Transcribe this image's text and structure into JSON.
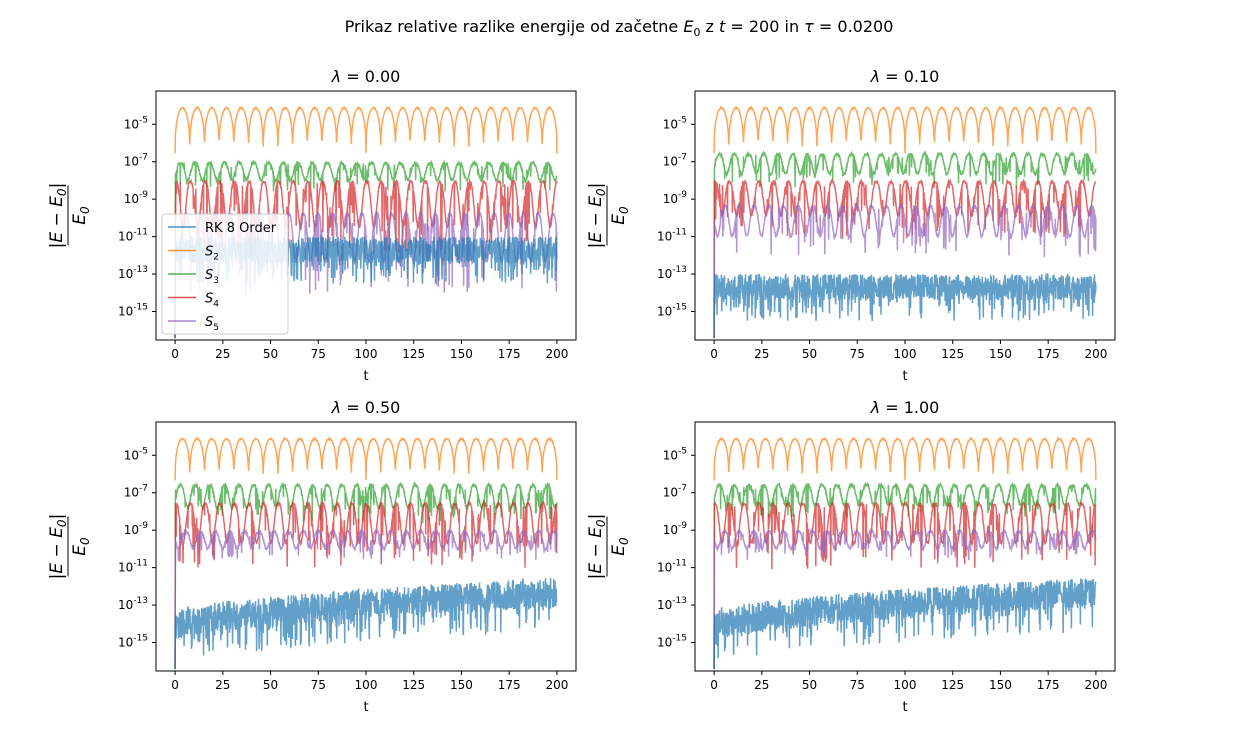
{
  "suptitle": {
    "prefix": "Prikaz relative razlike energije od začetne ",
    "e0": "E",
    "e0_sub": "0",
    "mid": " z ",
    "t_sym": "t",
    "t_val": " = 200 in ",
    "tau_sym": "τ",
    "tau_val": " = 0.0200"
  },
  "axis": {
    "xlabel": "t",
    "ylabel_num": "|E − E",
    "ylabel_num_sub": "0",
    "ylabel_num_end": "|",
    "ylabel_den": "E",
    "ylabel_den_sub": "0",
    "xticks": [
      "0",
      "25",
      "50",
      "75",
      "100",
      "125",
      "150",
      "175",
      "200"
    ],
    "yticks": [
      {
        "base": "10",
        "exp": "-15"
      },
      {
        "base": "10",
        "exp": "-13"
      },
      {
        "base": "10",
        "exp": "-11"
      },
      {
        "base": "10",
        "exp": "-9"
      },
      {
        "base": "10",
        "exp": "-7"
      },
      {
        "base": "10",
        "exp": "-5"
      }
    ]
  },
  "legend": [
    {
      "label": "RK 8 Order",
      "sub": "",
      "color": "#1f77b4"
    },
    {
      "label": "S",
      "sub": "2",
      "color": "#ff7f0e"
    },
    {
      "label": "S",
      "sub": "3",
      "color": "#2ca02c"
    },
    {
      "label": "S",
      "sub": "4",
      "color": "#d62728"
    },
    {
      "label": "S",
      "sub": "5",
      "color": "#9467bd"
    }
  ],
  "chart_data": [
    {
      "type": "line",
      "title": "λ = 0.00",
      "lambda": "0.00",
      "xlabel": "t",
      "xlim": [
        -10,
        210
      ],
      "yscale": "log",
      "ylim": [
        3e-17,
        0.0006
      ],
      "legend": "left",
      "series": [
        {
          "name": "RK 8 Order",
          "approx_min": 1e-15,
          "approx_max": 1e-11,
          "trend": "flat"
        },
        {
          "name": "S_2",
          "approx_min": 3e-07,
          "approx_max": 8e-05,
          "oscillations": 52
        },
        {
          "name": "S_3",
          "approx_min": 3e-09,
          "approx_max": 1e-07
        },
        {
          "name": "S_4",
          "approx_min": 1e-12,
          "approx_max": 1e-08
        },
        {
          "name": "S_5",
          "approx_min": 1e-14,
          "approx_max": 2e-10
        }
      ]
    },
    {
      "type": "line",
      "title": "λ = 0.10",
      "lambda": "0.10",
      "xlabel": "t",
      "xlim": [
        -10,
        210
      ],
      "yscale": "log",
      "ylim": [
        3e-17,
        0.0006
      ],
      "series": [
        {
          "name": "RK 8 Order",
          "approx_min": 1e-15,
          "approx_max": 1e-13,
          "trend": "flat"
        },
        {
          "name": "S_2",
          "approx_min": 3e-07,
          "approx_max": 8e-05,
          "oscillations": 52
        },
        {
          "name": "S_3",
          "approx_min": 5e-09,
          "approx_max": 3e-07
        },
        {
          "name": "S_4",
          "approx_min": 1e-11,
          "approx_max": 1e-08
        },
        {
          "name": "S_5",
          "approx_min": 1e-12,
          "approx_max": 5e-10
        }
      ]
    },
    {
      "type": "line",
      "title": "λ = 0.50",
      "lambda": "0.50",
      "xlabel": "t",
      "xlim": [
        -10,
        210
      ],
      "yscale": "log",
      "ylim": [
        3e-17,
        0.0006
      ],
      "series": [
        {
          "name": "RK 8 Order",
          "approx_min": 3e-16,
          "approx_max": 3e-12,
          "trend": "rising"
        },
        {
          "name": "S_2",
          "approx_min": 5e-07,
          "approx_max": 8e-05,
          "oscillations": 52
        },
        {
          "name": "S_3",
          "approx_min": 3e-09,
          "approx_max": 3e-07
        },
        {
          "name": "S_4",
          "approx_min": 1e-11,
          "approx_max": 3e-08
        },
        {
          "name": "S_5",
          "approx_min": 3e-11,
          "approx_max": 1e-09
        }
      ]
    },
    {
      "type": "line",
      "title": "λ = 1.00",
      "lambda": "1.00",
      "xlabel": "t",
      "xlim": [
        -10,
        210
      ],
      "yscale": "log",
      "ylim": [
        3e-17,
        0.0006
      ],
      "series": [
        {
          "name": "RK 8 Order",
          "approx_min": 3e-16,
          "approx_max": 3e-12,
          "trend": "rising"
        },
        {
          "name": "S_2",
          "approx_min": 5e-07,
          "approx_max": 8e-05,
          "oscillations": 52
        },
        {
          "name": "S_3",
          "approx_min": 5e-09,
          "approx_max": 3e-07
        },
        {
          "name": "S_4",
          "approx_min": 1e-11,
          "approx_max": 3e-08
        },
        {
          "name": "S_5",
          "approx_min": 3e-11,
          "approx_max": 1e-09
        }
      ]
    }
  ]
}
